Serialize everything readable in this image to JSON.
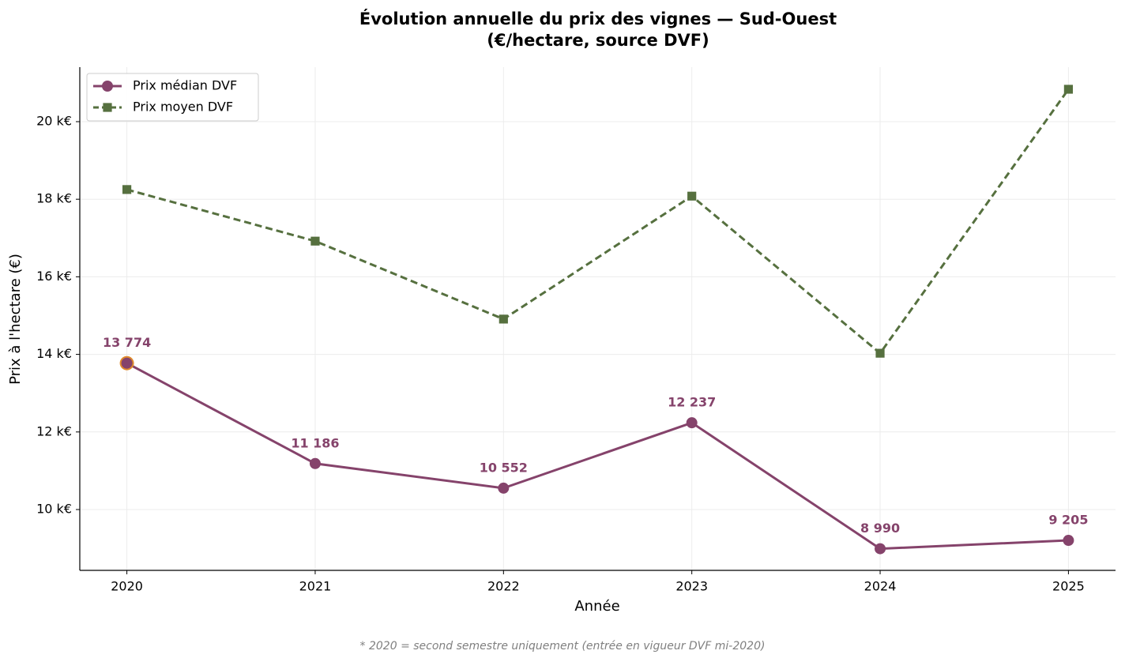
{
  "chart_data": {
    "type": "line",
    "title": "Évolution annuelle du prix des vignes — Sud-Ouest",
    "subtitle": "(€/hectare, source DVF)",
    "x_label": "Année",
    "y_label": "Prix à l'hectare (€)",
    "footnote": "* 2020 = second semestre uniquement (entrée en vigueur DVF mi-2020)",
    "x": [
      2020,
      2021,
      2022,
      2023,
      2024,
      2025
    ],
    "xlim": [
      2019.75,
      2025.25
    ],
    "xticks": [
      2020,
      2021,
      2022,
      2023,
      2024,
      2025
    ],
    "ylim": [
      8432,
      21405
    ],
    "yticks": [
      {
        "value": 10000,
        "label": "10 k€"
      },
      {
        "value": 12000,
        "label": "12 k€"
      },
      {
        "value": 14000,
        "label": "14 k€"
      },
      {
        "value": 16000,
        "label": "16 k€"
      },
      {
        "value": 18000,
        "label": "18 k€"
      },
      {
        "value": 20000,
        "label": "20 k€"
      }
    ],
    "grid": true,
    "legend": "upper-left",
    "series": [
      {
        "name": "Prix médian DVF",
        "color": "#85436b",
        "marker": "circle",
        "dash": false,
        "values": [
          13774,
          11186,
          10552,
          12237,
          8990,
          9205
        ],
        "value_labels": [
          "13 774",
          "11 186",
          "10 552",
          "12 237",
          "8 990",
          "9 205"
        ],
        "highlight": {
          "index": 0,
          "color": "#e08a2c"
        }
      },
      {
        "name": "Prix moyen DVF",
        "color": "#56703f",
        "marker": "square",
        "dash": true,
        "values": [
          18250,
          16920,
          14910,
          18080,
          14030,
          20835
        ]
      }
    ]
  }
}
